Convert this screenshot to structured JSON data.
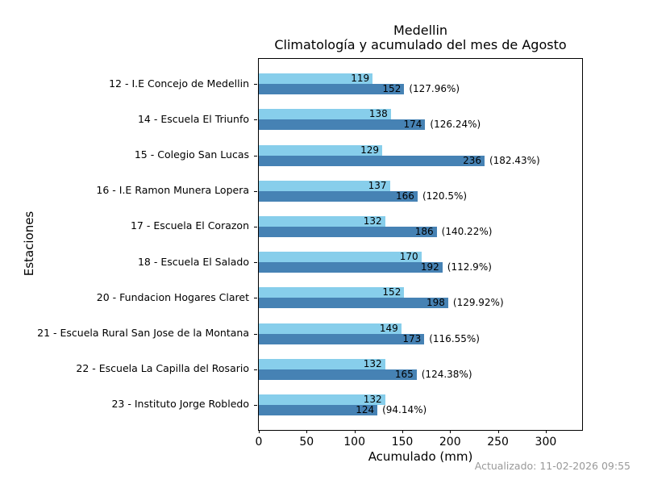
{
  "title": {
    "line1": "Medellin",
    "line2": "Climatología y acumulado del mes de Agosto"
  },
  "chart_data": {
    "type": "bar",
    "orientation": "horizontal",
    "title": "Medellin\nClimatología y acumulado del mes de Agosto",
    "xlabel": "Acumulado (mm)",
    "ylabel": "Estaciones",
    "xlim": [
      0,
      338
    ],
    "xticks": [
      0,
      50,
      100,
      150,
      200,
      250,
      300
    ],
    "grid": false,
    "legend": "none",
    "colors": {
      "climatologia_bar": "#87CEEB",
      "acumulado_bar": "#4682B4",
      "axis": "#000000",
      "footer_text": "#999999"
    },
    "categories": [
      "12 - I.E Concejo de Medellin",
      "14 - Escuela El Triunfo",
      "15 - Colegio San Lucas",
      "16 - I.E Ramon Munera Lopera",
      "17 - Escuela El Corazon",
      "18 - Escuela El Salado",
      "20 - Fundacion Hogares Claret",
      "21 - Escuela Rural San Jose de la Montana",
      "22 - Escuela La Capilla del Rosario",
      "23 - Instituto Jorge Robledo"
    ],
    "series": [
      {
        "name": "climatologia",
        "values": [
          119,
          138,
          129,
          137,
          132,
          170,
          152,
          149,
          132,
          132
        ]
      },
      {
        "name": "acumulado",
        "values": [
          152,
          174,
          236,
          166,
          186,
          192,
          198,
          173,
          165,
          124
        ]
      }
    ],
    "percent_labels": [
      "(127.96%)",
      "(126.24%)",
      "(182.43%)",
      "(120.5%)",
      "(140.22%)",
      "(112.9%)",
      "(129.92%)",
      "(116.55%)",
      "(124.38%)",
      "(94.14%)"
    ]
  },
  "footer": {
    "updated_label": "Actualizado: 11-02-2026 09:55"
  }
}
